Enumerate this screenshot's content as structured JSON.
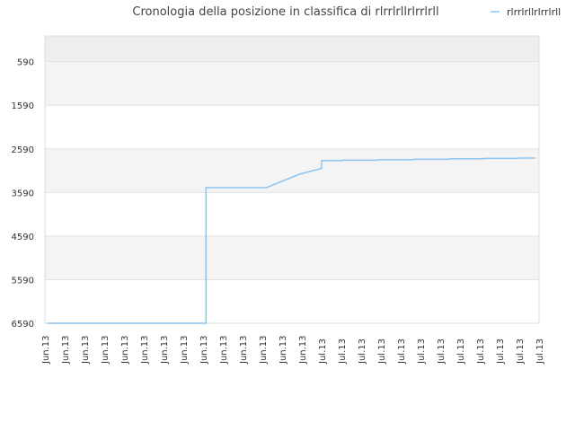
{
  "chart_data": {
    "type": "line",
    "title": "Cronologia della posizione in classifica di rlrrlrllrlrrlrll",
    "xlabel": "",
    "ylabel": "",
    "y_inverted": true,
    "ylim": [
      6590,
      0
    ],
    "yticks": [
      590,
      1590,
      2590,
      3590,
      4590,
      5590,
      6590
    ],
    "grid": true,
    "legend_position": "top-right",
    "x_categories": [
      "Jun.13",
      "Jun.13",
      "Jun.13",
      "Jun.13",
      "Jun.13",
      "Jun.13",
      "Jun.13",
      "Jun.13",
      "Jun.13",
      "Jun.13",
      "Jun.13",
      "Jun.13",
      "Jun.13",
      "Jun.13",
      "Jul.13",
      "Jul.13",
      "Jul.13",
      "Jul.13",
      "Jul.13",
      "Jul.13",
      "Jul.13",
      "Jul.13",
      "Jul.13",
      "Jul.13",
      "Jul.13",
      "Jul.13"
    ],
    "series": [
      {
        "name": "rlrrlrllrlrrlrll",
        "color": "#8ec3ee",
        "points": [
          [
            0.1,
            6590
          ],
          [
            8.15,
            6590
          ],
          [
            8.15,
            3480
          ],
          [
            11.2,
            3480
          ],
          [
            12.9,
            3170
          ],
          [
            14.0,
            3040
          ],
          [
            14.0,
            2860
          ],
          [
            15.0,
            2860
          ],
          [
            15.1,
            2850
          ],
          [
            16.8,
            2850
          ],
          [
            16.9,
            2840
          ],
          [
            18.6,
            2840
          ],
          [
            18.7,
            2830
          ],
          [
            20.4,
            2830
          ],
          [
            20.5,
            2820
          ],
          [
            22.1,
            2820
          ],
          [
            22.2,
            2810
          ],
          [
            23.9,
            2810
          ],
          [
            24.0,
            2800
          ],
          [
            24.8,
            2800
          ]
        ]
      }
    ]
  }
}
